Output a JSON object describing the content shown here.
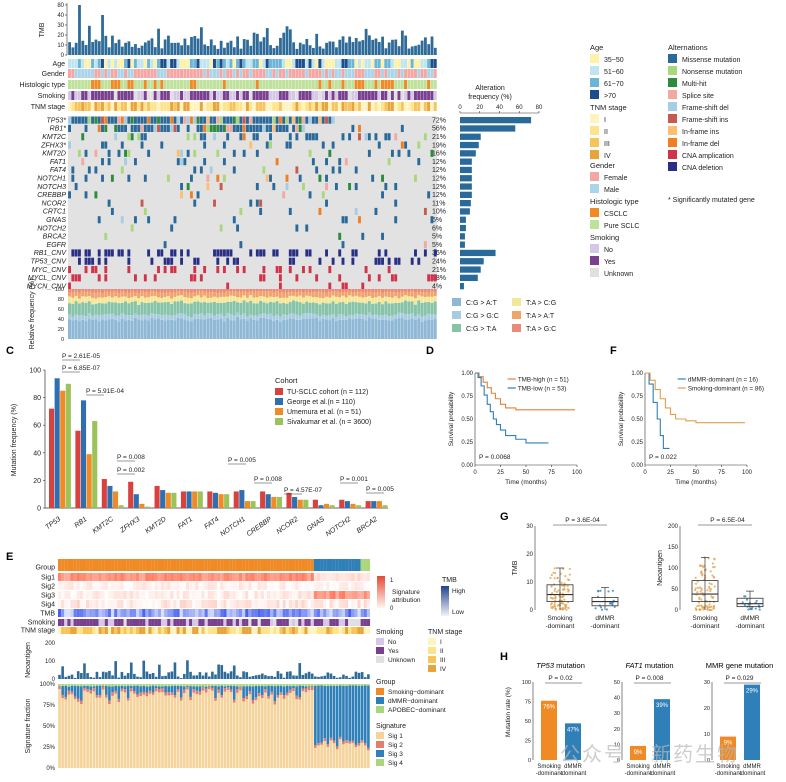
{
  "colors": {
    "tmb_bar": "#2f6b98",
    "missense": "#2a6a9a",
    "nonsense": "#a9d77b",
    "multihit": "#2e8b3d",
    "splice": "#f1a9a0",
    "fs_del": "#a6cee3",
    "fs_ins": "#c75a4e",
    "if_ins": "#fdbf6f",
    "if_del": "#f07f23",
    "cna_amp": "#d0344a",
    "cna_del": "#2a2f86",
    "grey": "#e2e2e2"
  },
  "panelA": {
    "tmb_label": "TMB",
    "tmb_ticks": [
      "0",
      "10",
      "20",
      "30",
      "40",
      "80"
    ],
    "clin_labels": [
      "Age",
      "Gender",
      "Histologic type",
      "Smoking",
      "TNM stage"
    ],
    "genes": [
      {
        "label": "TP53*",
        "pct": "72%",
        "value": 72,
        "type": "mut"
      },
      {
        "label": "RB1*",
        "pct": "56%",
        "value": 56,
        "type": "mut"
      },
      {
        "label": "KMT2C",
        "pct": "21%",
        "value": 21,
        "type": "mut"
      },
      {
        "label": "ZFHX3*",
        "pct": "19%",
        "value": 19,
        "type": "mut"
      },
      {
        "label": "KMT2D",
        "pct": "16%",
        "value": 16,
        "type": "mut"
      },
      {
        "label": "FAT1",
        "pct": "12%",
        "value": 12,
        "type": "mut"
      },
      {
        "label": "FAT4",
        "pct": "12%",
        "value": 12,
        "type": "mut"
      },
      {
        "label": "NOTCH1",
        "pct": "12%",
        "value": 12,
        "type": "mut"
      },
      {
        "label": "NOTCH3",
        "pct": "12%",
        "value": 12,
        "type": "mut"
      },
      {
        "label": "CREBBP",
        "pct": "12%",
        "value": 12,
        "type": "mut"
      },
      {
        "label": "NCOR2",
        "pct": "11%",
        "value": 11,
        "type": "mut"
      },
      {
        "label": "CRTC1",
        "pct": "10%",
        "value": 10,
        "type": "mut"
      },
      {
        "label": "GNAS",
        "pct": "6%",
        "value": 6,
        "type": "mut"
      },
      {
        "label": "NOTCH2",
        "pct": "6%",
        "value": 6,
        "type": "mut"
      },
      {
        "label": "BRCA2",
        "pct": "5%",
        "value": 5,
        "type": "mut"
      },
      {
        "label": "EGFR",
        "pct": "5%",
        "value": 5,
        "type": "mut"
      },
      {
        "label": "RB1_CNV",
        "pct": "36%",
        "value": 36,
        "type": "del"
      },
      {
        "label": "TP53_CNV",
        "pct": "24%",
        "value": 24,
        "type": "del"
      },
      {
        "label": "MYC_CNV",
        "pct": "21%",
        "value": 21,
        "type": "amp"
      },
      {
        "label": "MYCL_CNV",
        "pct": "18%",
        "value": 18,
        "type": "amp"
      },
      {
        "label": "MYCN_CNV",
        "pct": "4%",
        "value": 4,
        "type": "amp"
      }
    ],
    "alt_freq_title": "Alteration frequency (%)",
    "alt_freq_ticks": [
      "0",
      "20",
      "40",
      "60",
      "80"
    ],
    "rel_freq_label": "Relative frequency (%)",
    "rel_freq_ticks": [
      "100",
      "80",
      "60",
      "40",
      "20",
      "0"
    ],
    "substitutions": [
      {
        "label": "C:G > A:T",
        "color": "#8fb8d6"
      },
      {
        "label": "C:G > G:C",
        "color": "#a9cbe0"
      },
      {
        "label": "C:G > T:A",
        "color": "#87c3a9"
      },
      {
        "label": "T:A > C:G",
        "color": "#f3e79a"
      },
      {
        "label": "T:A > A:T",
        "color": "#f0a36a"
      },
      {
        "label": "T:A > G:C",
        "color": "#ea8a78"
      }
    ]
  },
  "legend": {
    "age_title": "Age",
    "age": [
      {
        "label": "35~50",
        "color": "#fff1a8"
      },
      {
        "label": "51~60",
        "color": "#bfe6ef"
      },
      {
        "label": "61~70",
        "color": "#6bb6d8"
      },
      {
        "label": ">70",
        "color": "#1f4e8c"
      }
    ],
    "tnm_title": "TNM stage",
    "tnm": [
      {
        "label": "I",
        "color": "#fff4bf"
      },
      {
        "label": "II",
        "color": "#fde38a"
      },
      {
        "label": "III",
        "color": "#f6c45a"
      },
      {
        "label": "IV",
        "color": "#e8a43a"
      }
    ],
    "gender_title": "Gender",
    "gender": [
      {
        "label": "Female",
        "color": "#f4a7a2"
      },
      {
        "label": "Male",
        "color": "#a9d4ea"
      }
    ],
    "histo_title": "Histologic type",
    "histo": [
      {
        "label": "CSCLC",
        "color": "#f08a24"
      },
      {
        "label": "Pure SCLC",
        "color": "#bfe29a"
      }
    ],
    "smoking_title": "Smoking",
    "smoking": [
      {
        "label": "No",
        "color": "#d6c7e6"
      },
      {
        "label": "Yes",
        "color": "#7b3f8f"
      },
      {
        "label": "Unknown",
        "color": "#e0e0e0"
      }
    ],
    "alt_title": "Alternations",
    "alts": [
      {
        "label": "Missense mutation",
        "color": "#2a6a9a"
      },
      {
        "label": "Nonsense mutation",
        "color": "#a9d77b"
      },
      {
        "label": "Multi-hit",
        "color": "#2e8b3d"
      },
      {
        "label": "Splice site",
        "color": "#f1a9a0"
      },
      {
        "label": "Frame-shift del",
        "color": "#a6cee3"
      },
      {
        "label": "Frame-shift ins",
        "color": "#c75a4e"
      },
      {
        "label": "In-frame ins",
        "color": "#fdbf6f"
      },
      {
        "label": "In-frame del",
        "color": "#f07f23"
      },
      {
        "label": "CNA amplication",
        "color": "#d0344a"
      },
      {
        "label": "CNA deletion",
        "color": "#2a2f86"
      }
    ],
    "note": "* Significantly mutated gene"
  },
  "chart_data": [
    {
      "panel": "C",
      "type": "bar",
      "ylabel": "Mutation frequency (%)",
      "ylim": [
        0,
        100
      ],
      "yticks": [
        "0",
        "20",
        "40",
        "60",
        "80",
        "100"
      ],
      "categories": [
        "TP53",
        "RB1",
        "KMT2C",
        "ZFHX3",
        "KMT2D",
        "FAT1",
        "FAT4",
        "NOTCH1",
        "CREBBP",
        "NCOR2",
        "GNAS",
        "NOTCH2",
        "BRCA2"
      ],
      "legend_title": "Cohort",
      "series": [
        {
          "name": "TU-SCLC cohort (n = 112)",
          "color": "#d9413f",
          "values": [
            72,
            56,
            21,
            19,
            16,
            12,
            12,
            12,
            12,
            11,
            6,
            6,
            5
          ]
        },
        {
          "name": "George et al.(n = 110)",
          "color": "#2f6fb0",
          "values": [
            94,
            78,
            16,
            10,
            13,
            12,
            11,
            13,
            10,
            8,
            2,
            5,
            5
          ]
        },
        {
          "name": "Umemura et al. (n = 51)",
          "color": "#f08a24",
          "values": [
            85,
            39,
            12,
            3,
            11,
            12,
            10,
            5,
            8,
            6,
            3,
            3,
            5
          ]
        },
        {
          "name": "Sivakumar et al. (n = 3600)",
          "color": "#9cc25a",
          "values": [
            90,
            63,
            2,
            1,
            11,
            12,
            10,
            5,
            8,
            6,
            2,
            2,
            2
          ]
        }
      ],
      "pvalues": [
        {
          "label": "P = 2.61E-05"
        },
        {
          "label": "P = 6.85E-07"
        },
        {
          "label": "P = 5.91E-04"
        },
        {
          "label": "P = 0.008"
        },
        {
          "label": "P = 0.002"
        },
        {
          "label": "P = 0.005"
        },
        {
          "label": "P = 0.008"
        },
        {
          "label": "P = 4.57E-07"
        },
        {
          "label": "P = 0.001"
        },
        {
          "label": "P = 0.005"
        }
      ]
    },
    {
      "panel": "D",
      "type": "line",
      "xlabel": "Time (months)",
      "ylabel": "Survival probability",
      "xlim": [
        0,
        100
      ],
      "ylim": [
        0,
        1
      ],
      "xticks": [
        "0",
        "25",
        "50",
        "75",
        "100"
      ],
      "yticks": [
        "0.00",
        "0.25",
        "0.50",
        "0.75",
        "1.00"
      ],
      "pvalue": "P = 0.0068",
      "series": [
        {
          "name": "TMB-high (n = 51)",
          "color": "#e0813c",
          "x": [
            0,
            4,
            8,
            12,
            16,
            20,
            25,
            30,
            40,
            50,
            60,
            75,
            98
          ],
          "y": [
            1,
            0.96,
            0.9,
            0.84,
            0.78,
            0.72,
            0.66,
            0.62,
            0.6,
            0.6,
            0.6,
            0.6,
            0.6
          ]
        },
        {
          "name": "TMB-low (n = 53)",
          "color": "#2f7fb8",
          "x": [
            0,
            3,
            6,
            9,
            12,
            15,
            18,
            21,
            25,
            30,
            40,
            50,
            55,
            72
          ],
          "y": [
            1,
            0.95,
            0.86,
            0.76,
            0.66,
            0.58,
            0.5,
            0.44,
            0.38,
            0.32,
            0.28,
            0.24,
            0.24,
            0.24
          ]
        }
      ]
    },
    {
      "panel": "F",
      "type": "line",
      "xlabel": "Time (months)",
      "ylabel": "Survival probability",
      "xlim": [
        0,
        100
      ],
      "ylim": [
        0,
        1
      ],
      "xticks": [
        "0",
        "25",
        "50",
        "75",
        "100"
      ],
      "yticks": [
        "0.00",
        "0.25",
        "0.50",
        "0.75",
        "1.00"
      ],
      "pvalue": "P = 0.022",
      "series": [
        {
          "name": "dMMR-dominant (n = 16)",
          "color": "#2f7fb8",
          "x": [
            0,
            4,
            8,
            12,
            15,
            18,
            20,
            24
          ],
          "y": [
            1,
            0.88,
            0.68,
            0.5,
            0.32,
            0.18,
            0.18,
            0.18
          ]
        },
        {
          "name": "Smoking-dominant (n = 86)",
          "color": "#e0a04a",
          "x": [
            0,
            5,
            10,
            15,
            20,
            25,
            30,
            40,
            50,
            60,
            75,
            98
          ],
          "y": [
            1,
            0.92,
            0.82,
            0.72,
            0.62,
            0.55,
            0.5,
            0.48,
            0.46,
            0.46,
            0.46,
            0.46
          ]
        }
      ]
    },
    {
      "panel": "G",
      "type": "box",
      "plots": [
        {
          "ylabel": "TMB",
          "ymax": 30,
          "yticks": [
            "0",
            "10",
            "20",
            "30"
          ],
          "pvalue": "P = 3.6E-04",
          "categories": [
            "Smoking -dominant",
            "dMMR -dominant"
          ],
          "boxes": [
            {
              "q1": 3,
              "med": 5.5,
              "q3": 9,
              "lo": 0,
              "hi": 15,
              "color": "#e0a04a"
            },
            {
              "q1": 1.5,
              "med": 3,
              "q3": 4.5,
              "lo": 0,
              "hi": 8,
              "color": "#2f7fb8"
            }
          ]
        },
        {
          "ylabel": "Neoantigen",
          "ymax": 200,
          "yticks": [
            "0",
            "50",
            "100",
            "150",
            "200"
          ],
          "pvalue": "P = 6.5E-04",
          "categories": [
            "Smoking -dominant",
            "dMMR -dominant"
          ],
          "boxes": [
            {
              "q1": 20,
              "med": 38,
              "q3": 70,
              "lo": 0,
              "hi": 125,
              "color": "#e0a04a"
            },
            {
              "q1": 8,
              "med": 15,
              "q3": 28,
              "lo": 0,
              "hi": 45,
              "color": "#2f7fb8"
            }
          ]
        }
      ]
    },
    {
      "panel": "H",
      "type": "bar",
      "ylabel": "Mutation rate (%)",
      "categories": [
        "Smoking -dominant",
        "dMMR -dominant"
      ],
      "plots": [
        {
          "title": "TP53 mutation",
          "title_gene": "TP53",
          "title_rest": " mutation",
          "pvalue": "P = 0.02",
          "values": [
            76,
            47
          ],
          "labels": [
            "76%",
            "47%"
          ],
          "yticks": [
            "0",
            "25",
            "50",
            "75",
            "100"
          ],
          "ymax": 100
        },
        {
          "title": "FAT1 mutation",
          "title_gene": "FAT1",
          "title_rest": " mutation",
          "pvalue": "P = 0.008",
          "values": [
            9,
            39
          ],
          "labels": [
            "9%",
            "39%"
          ],
          "yticks": [
            "0",
            "10",
            "20",
            "30",
            "40",
            "50"
          ],
          "ymax": 50
        },
        {
          "title": "MMR gene mutation",
          "title_gene": "",
          "title_rest": "MMR gene mutation",
          "pvalue": "P = 0.029",
          "values": [
            9,
            29
          ],
          "labels": [
            "9%",
            "29%"
          ],
          "yticks": [
            "0",
            "10",
            "20",
            "30"
          ],
          "ymax": 30
        }
      ]
    }
  ],
  "panelE": {
    "rows": [
      "Group",
      "Sig1",
      "Sig2",
      "Sig3",
      "Sig4",
      "TMB",
      "Smoking",
      "TNM stage"
    ],
    "neo_label": "Neoantigen",
    "neo_ticks": [
      "0",
      "100",
      "200"
    ],
    "frac_label": "Signature fraction",
    "frac_ticks": [
      "0%",
      "25%",
      "50%",
      "75%",
      "100%"
    ],
    "attr_title": "Signature attribution",
    "attr_ticks": [
      "1",
      "0"
    ],
    "tmb_title": "TMB",
    "tmb_ticks": [
      "High",
      "Low"
    ],
    "smoking_title": "Smoking",
    "smoking": [
      {
        "label": "No",
        "color": "#d6c7e6"
      },
      {
        "label": "Yes",
        "color": "#7b3f8f"
      },
      {
        "label": "Unknown",
        "color": "#e0e0e0"
      }
    ],
    "tnm_title": "TNM stage",
    "tnm": [
      {
        "label": "I",
        "color": "#fff4bf"
      },
      {
        "label": "II",
        "color": "#fde38a"
      },
      {
        "label": "III",
        "color": "#f6c45a"
      },
      {
        "label": "IV",
        "color": "#e8a43a"
      }
    ],
    "group_title": "Group",
    "group": [
      {
        "label": "Smoking−dominant",
        "color": "#f08a24"
      },
      {
        "label": "dMMR−dominant",
        "color": "#2f7fb8"
      },
      {
        "label": "APOBEC−dominant",
        "color": "#a9d77b"
      }
    ],
    "sig_title": "Signature",
    "sig": [
      {
        "label": "Sig 1",
        "color": "#f5d39a"
      },
      {
        "label": "Sig 2",
        "color": "#e37d6e"
      },
      {
        "label": "Sig 3",
        "color": "#2f7fb8"
      },
      {
        "label": "Sig 4",
        "color": "#a9d77b"
      }
    ]
  },
  "panel_letters": [
    "C",
    "D",
    "E",
    "F",
    "G",
    "H"
  ],
  "watermark": "公众号 · 新药生物"
}
